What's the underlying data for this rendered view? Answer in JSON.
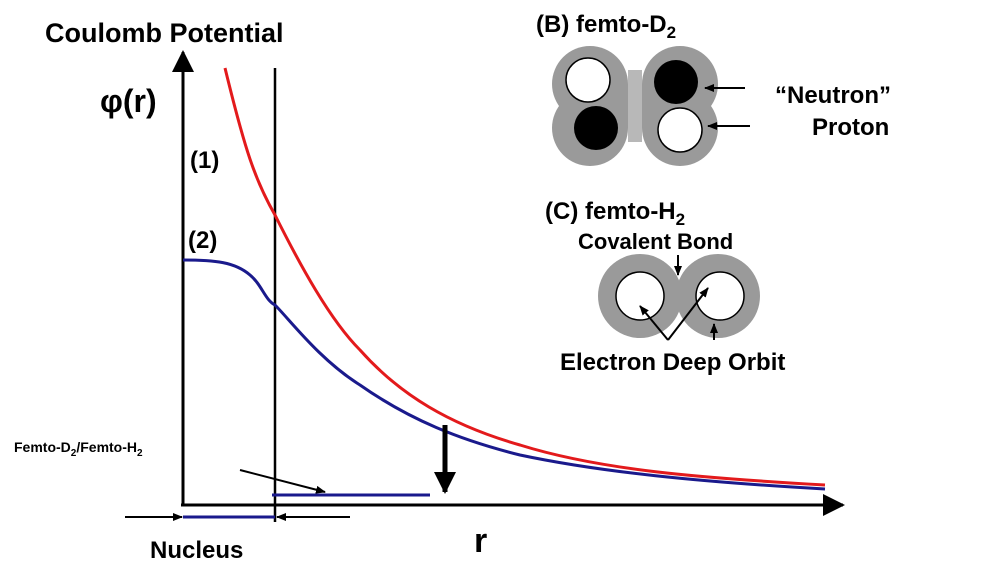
{
  "potential": {
    "title": "Coulomb Potential",
    "y_label": "φ(r)",
    "x_label": "r",
    "curve_1": "(1)",
    "curve_2": "(2)",
    "femto_label": {
      "part1": "Femto-D",
      "sub1": "2",
      "part2": "/Femto-H",
      "sub2": "2"
    },
    "nucleus": "Nucleus"
  },
  "panel_b": {
    "title": "(B) femto-D",
    "title_sub": "2",
    "neutron": "“Neutron”",
    "proton": "Proton"
  },
  "panel_c": {
    "title": "(C) femto-H",
    "title_sub": "2",
    "bond": "Covalent Bond",
    "orbit": "Electron Deep Orbit"
  }
}
